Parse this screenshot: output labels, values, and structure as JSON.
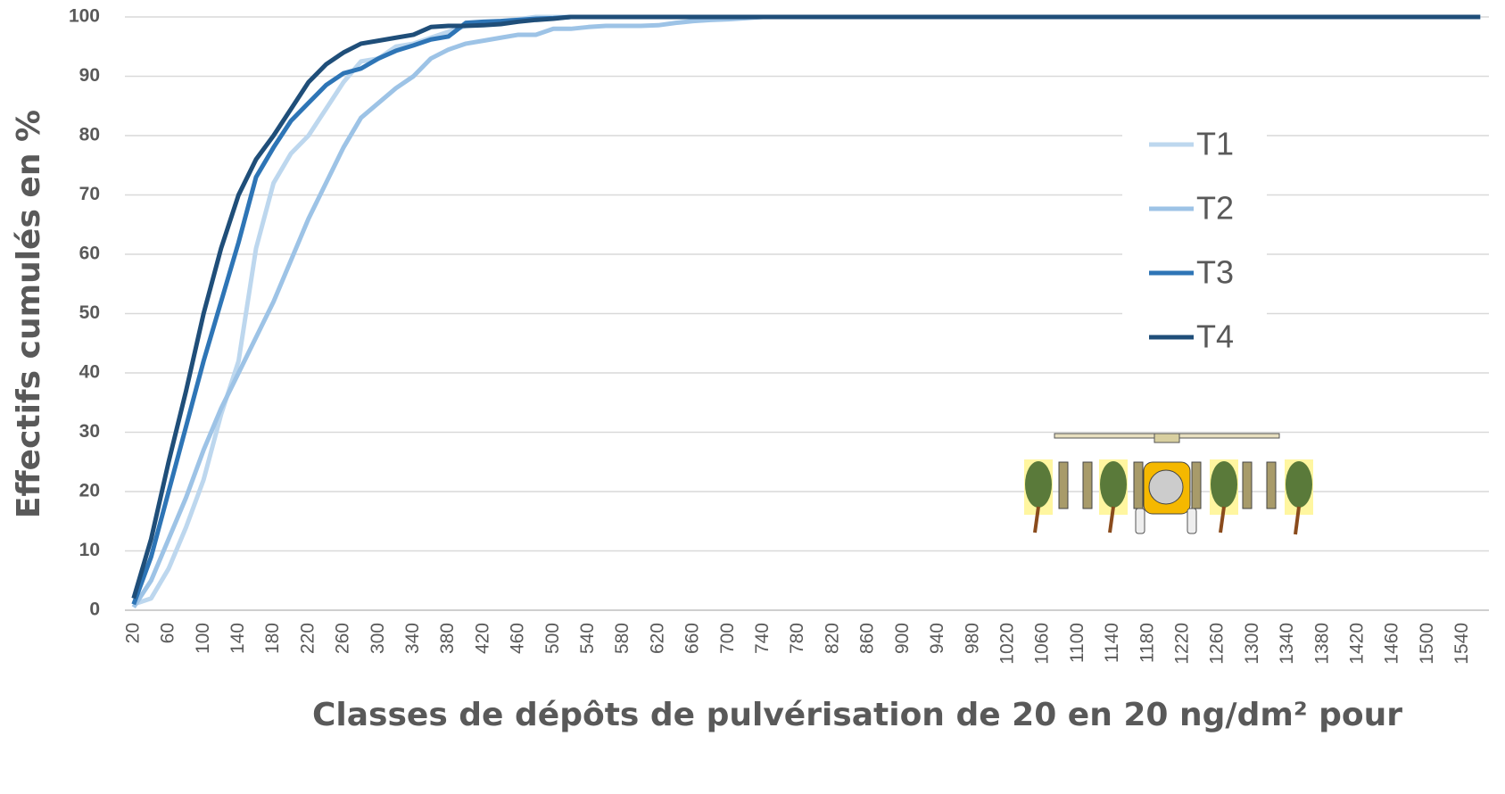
{
  "chart_data": {
    "type": "line",
    "y_label": "Effectifs cumulés en %",
    "x_label": "Classes de dépôts de pulvérisation de 20 en 20 ng/dm² pour",
    "x": [
      20,
      40,
      60,
      80,
      100,
      120,
      140,
      160,
      180,
      200,
      220,
      240,
      260,
      280,
      300,
      320,
      340,
      360,
      380,
      400,
      420,
      440,
      460,
      480,
      500,
      520,
      540,
      560,
      580,
      600,
      620,
      640,
      660,
      680,
      700,
      720,
      740,
      760,
      780,
      800,
      820,
      840,
      860,
      880,
      900,
      920,
      940,
      960,
      980,
      1000,
      1020,
      1040,
      1060,
      1080,
      1100,
      1120,
      1140,
      1160,
      1180,
      1200,
      1220,
      1240,
      1260,
      1280,
      1300,
      1320,
      1340,
      1360,
      1380,
      1400,
      1420,
      1440,
      1460,
      1480,
      1500,
      1520,
      1540,
      1560
    ],
    "xlim": [
      10,
      1570
    ],
    "xticks": [
      20,
      60,
      100,
      140,
      180,
      220,
      260,
      300,
      340,
      380,
      420,
      460,
      500,
      540,
      580,
      620,
      660,
      700,
      740,
      780,
      820,
      860,
      900,
      940,
      980,
      1020,
      1060,
      1100,
      1140,
      1180,
      1220,
      1260,
      1300,
      1340,
      1380,
      1420,
      1460,
      1500,
      1540
    ],
    "ylim": [
      0,
      100
    ],
    "yticks": [
      0,
      10,
      20,
      30,
      40,
      50,
      60,
      70,
      80,
      90,
      100
    ],
    "grid": true,
    "series": [
      {
        "name": "T1",
        "color": "#bdd7ee",
        "values": [
          1,
          2,
          7,
          14,
          22,
          33,
          42,
          61,
          72,
          77,
          80,
          84.5,
          89,
          92.5,
          93,
          95,
          95.5,
          96.5,
          97.5,
          98.5,
          99,
          99.3,
          99.6,
          100,
          100,
          100,
          100,
          100,
          100,
          100,
          100,
          100,
          100,
          100,
          100,
          100,
          100,
          100,
          100,
          100,
          100,
          100,
          100,
          100,
          100,
          100,
          100,
          100,
          100,
          100,
          100,
          100,
          100,
          100,
          100,
          100,
          100,
          100,
          100,
          100,
          100,
          100,
          100,
          100,
          100,
          100,
          100,
          100,
          100,
          100,
          100,
          100,
          100,
          100,
          100,
          100,
          100,
          100
        ]
      },
      {
        "name": "T2",
        "color": "#9dc3e6",
        "values": [
          0.5,
          5,
          12,
          19,
          27,
          34,
          40,
          46,
          52,
          59,
          66,
          72,
          78,
          83,
          85.5,
          88,
          90,
          93,
          94.5,
          95.5,
          96,
          96.5,
          97,
          97,
          98,
          98,
          98.3,
          98.5,
          98.5,
          98.5,
          98.6,
          99,
          99.3,
          99.5,
          99.6,
          99.8,
          100,
          100,
          100,
          100,
          100,
          100,
          100,
          100,
          100,
          100,
          100,
          100,
          100,
          100,
          100,
          100,
          100,
          100,
          100,
          100,
          100,
          100,
          100,
          100,
          100,
          100,
          100,
          100,
          100,
          100,
          100,
          100,
          100,
          100,
          100,
          100,
          100,
          100,
          100,
          100,
          100,
          100
        ]
      },
      {
        "name": "T3",
        "color": "#2e75b6",
        "values": [
          1,
          9,
          20,
          31,
          42,
          52,
          62,
          73,
          78,
          82.5,
          85.5,
          88.5,
          90.5,
          91.3,
          93,
          94.3,
          95.2,
          96.2,
          96.7,
          99,
          99.2,
          99.3,
          99.5,
          99.7,
          99.8,
          100,
          100,
          100,
          100,
          100,
          100,
          100,
          100,
          100,
          100,
          100,
          100,
          100,
          100,
          100,
          100,
          100,
          100,
          100,
          100,
          100,
          100,
          100,
          100,
          100,
          100,
          100,
          100,
          100,
          100,
          100,
          100,
          100,
          100,
          100,
          100,
          100,
          100,
          100,
          100,
          100,
          100,
          100,
          100,
          100,
          100,
          100,
          100,
          100,
          100,
          100,
          100,
          100
        ]
      },
      {
        "name": "T4",
        "color": "#1f4e79",
        "values": [
          2,
          12,
          25,
          37,
          50,
          61,
          70,
          76,
          80,
          84.5,
          89,
          92,
          94,
          95.5,
          96,
          96.5,
          97,
          98.3,
          98.5,
          98.5,
          98.6,
          98.8,
          99.2,
          99.5,
          99.7,
          100,
          100,
          100,
          100,
          100,
          100,
          100,
          100,
          100,
          100,
          100,
          100,
          100,
          100,
          100,
          100,
          100,
          100,
          100,
          100,
          100,
          100,
          100,
          100,
          100,
          100,
          100,
          100,
          100,
          100,
          100,
          100,
          100,
          100,
          100,
          100,
          100,
          100,
          100,
          100,
          100,
          100,
          100,
          100,
          100,
          100,
          100,
          100,
          100,
          100,
          100,
          100,
          100
        ]
      }
    ],
    "legend": "right"
  }
}
